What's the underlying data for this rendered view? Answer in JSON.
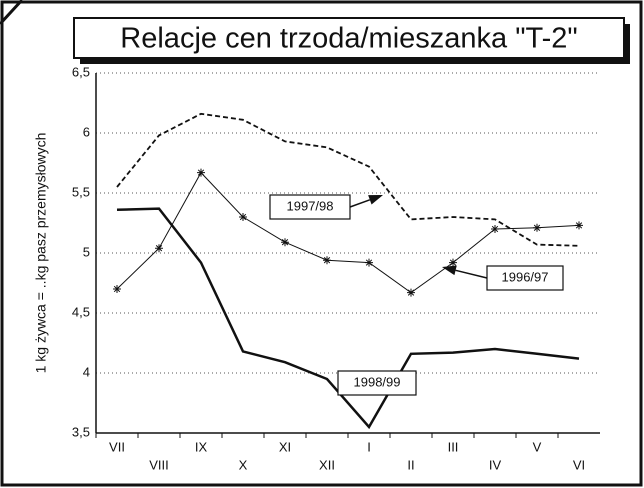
{
  "chart_data": {
    "type": "line",
    "title": "Relacje cen trzoda/mieszanka \"T-2\"",
    "y_label": "1 kg żywca = ..kg pasz przemysłowych",
    "categories": [
      "VII",
      "VIII",
      "IX",
      "X",
      "XI",
      "XII",
      "I",
      "II",
      "III",
      "IV",
      "V",
      "VI"
    ],
    "series": [
      {
        "name": "1997/98",
        "color": "#111111",
        "style": "dashed",
        "values": [
          5.55,
          5.98,
          6.16,
          6.11,
          5.93,
          5.88,
          5.72,
          5.28,
          5.3,
          5.28,
          5.07,
          5.06
        ]
      },
      {
        "name": "1996/97",
        "color": "#111111",
        "style": "star",
        "values": [
          4.7,
          5.04,
          5.67,
          5.3,
          5.09,
          4.94,
          4.92,
          4.67,
          4.92,
          5.2,
          5.21,
          5.23
        ]
      },
      {
        "name": "1998/99",
        "color": "#111111",
        "style": "thick",
        "values": [
          5.36,
          5.37,
          4.92,
          4.18,
          4.09,
          3.95,
          3.55,
          4.16,
          4.17,
          4.2,
          4.16,
          4.12
        ]
      }
    ],
    "ylim": [
      3.5,
      6.5
    ],
    "yticks": [
      {
        "value": 3.5,
        "label": "3,5"
      },
      4,
      {
        "value": 4.5,
        "label": "4,5"
      },
      5,
      {
        "value": 5.5,
        "label": "5,5"
      },
      6,
      {
        "value": 6.5,
        "label": "6,5"
      }
    ],
    "grid": true
  }
}
